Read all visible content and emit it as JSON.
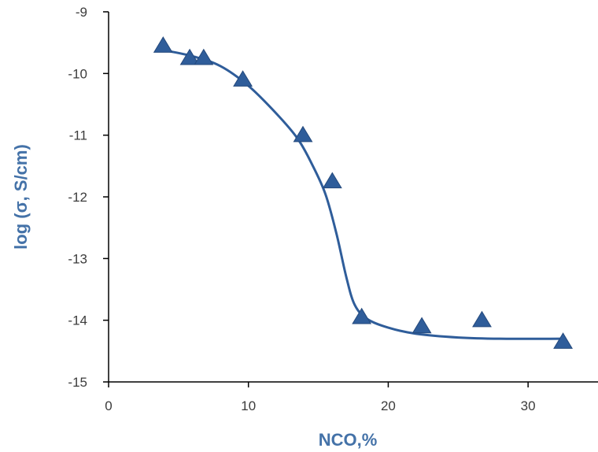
{
  "chart_data": {
    "type": "scatter",
    "title": "",
    "xlabel": "NCO,%",
    "ylabel": "log (σ,  S/cm)",
    "xlim": [
      0,
      35
    ],
    "ylim": [
      -15,
      -9
    ],
    "x_ticks": [
      0,
      10,
      20,
      30
    ],
    "y_ticks": [
      -9,
      -10,
      -11,
      -12,
      -13,
      -14,
      -15
    ],
    "grid": false,
    "legend": "none",
    "colors": {
      "series": "#2f5d9a",
      "axis": "#000000",
      "ylabel": "#4472a8",
      "xlabel": "#3c4a5c"
    },
    "series": [
      {
        "marker": "triangle",
        "points": [
          {
            "x": 3.9,
            "y": -9.55
          },
          {
            "x": 5.8,
            "y": -9.75
          },
          {
            "x": 6.8,
            "y": -9.75
          },
          {
            "x": 9.6,
            "y": -10.1
          },
          {
            "x": 13.9,
            "y": -11.0
          },
          {
            "x": 16.0,
            "y": -11.75
          },
          {
            "x": 18.1,
            "y": -13.95
          },
          {
            "x": 22.4,
            "y": -14.1
          },
          {
            "x": 26.7,
            "y": -14.0
          },
          {
            "x": 32.5,
            "y": -14.35
          }
        ]
      }
    ],
    "fit_curve": {
      "points": [
        {
          "x": 3.9,
          "y": -9.62
        },
        {
          "x": 6.0,
          "y": -9.72
        },
        {
          "x": 8.0,
          "y": -9.88
        },
        {
          "x": 10.0,
          "y": -10.2
        },
        {
          "x": 12.0,
          "y": -10.65
        },
        {
          "x": 13.5,
          "y": -11.05
        },
        {
          "x": 14.5,
          "y": -11.45
        },
        {
          "x": 15.5,
          "y": -11.95
        },
        {
          "x": 16.3,
          "y": -12.6
        },
        {
          "x": 17.0,
          "y": -13.3
        },
        {
          "x": 17.6,
          "y": -13.75
        },
        {
          "x": 18.5,
          "y": -13.98
        },
        {
          "x": 20.0,
          "y": -14.12
        },
        {
          "x": 22.0,
          "y": -14.22
        },
        {
          "x": 25.0,
          "y": -14.28
        },
        {
          "x": 28.0,
          "y": -14.3
        },
        {
          "x": 32.5,
          "y": -14.3
        }
      ]
    }
  }
}
